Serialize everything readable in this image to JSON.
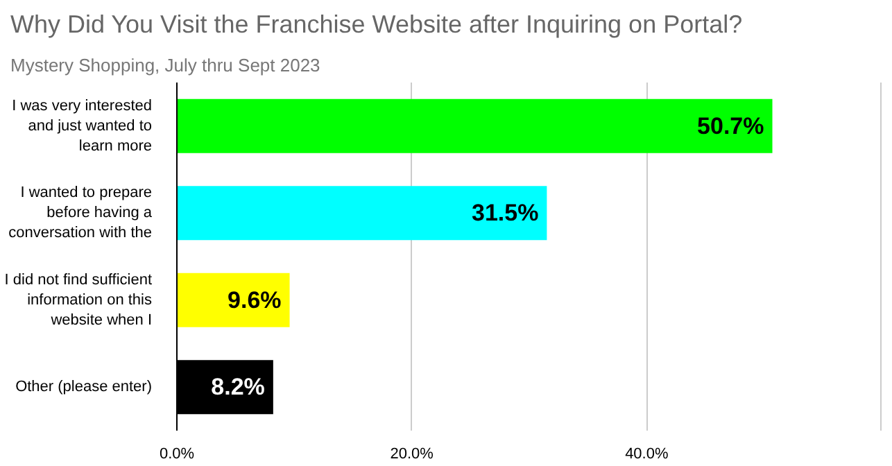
{
  "chart_data": {
    "type": "bar",
    "orientation": "horizontal",
    "title": "Why Did You Visit the Franchise Website after Inquiring on Portal?",
    "subtitle": "Mystery Shopping, July thru Sept 2023",
    "categories": [
      "I was very interested\nand just wanted to\nlearn more",
      "I wanted to prepare\nbefore having a\nconversation with the",
      "I did not find sufficient\ninformation on this\nwebsite when I",
      "Other (please enter)"
    ],
    "values": [
      50.7,
      31.5,
      9.6,
      8.2
    ],
    "colors": [
      "#00ff00",
      "#00ffff",
      "#ffff00",
      "#000000"
    ],
    "value_labels": [
      "50.7%",
      "31.5%",
      "9.6%",
      "8.2%"
    ],
    "xlim": [
      0,
      60
    ],
    "xticks": [
      {
        "value": 0,
        "label": "0.0%"
      },
      {
        "value": 20,
        "label": "20.0%"
      },
      {
        "value": 40,
        "label": "40.0%"
      },
      {
        "value": 60,
        "label": null
      }
    ],
    "grid": "x"
  }
}
